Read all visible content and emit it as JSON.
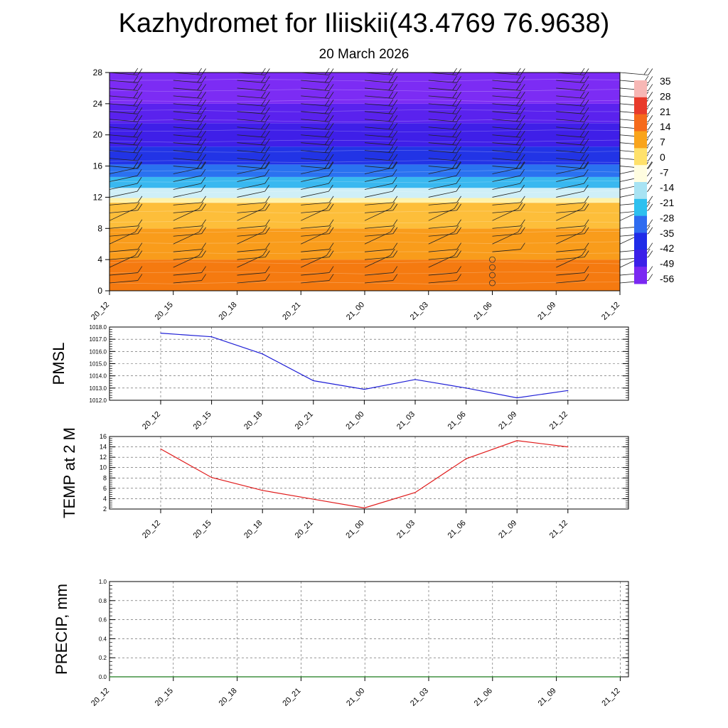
{
  "title": "Kazhydromet for Iliiskii(43.4769 76.9638)",
  "subtitle": "20 March 2026",
  "chart_data": [
    {
      "type": "heatmap",
      "name": "vertical-profile",
      "x_labels": [
        "20_12",
        "20_15",
        "20_18",
        "20_21",
        "21_00",
        "21_03",
        "21_06",
        "21_09",
        "21_12"
      ],
      "yticks": [
        0,
        4,
        8,
        12,
        16,
        20,
        24,
        28
      ],
      "ylim": [
        0,
        28
      ],
      "colorbar_labels": [
        "35",
        "28",
        "21",
        "14",
        "7",
        "0",
        "-7",
        "-14",
        "-21",
        "-28",
        "-35",
        "-42",
        "-49",
        "-56"
      ],
      "colorbar_colors": [
        "#f7b7b5",
        "#e83a2b",
        "#f56a1c",
        "#f9a41b",
        "#ffe16b",
        "#fffde0",
        "#a8e3f3",
        "#2ec0ef",
        "#2f6cf0",
        "#1f2ce8",
        "#3b1fe8",
        "#7a28f2"
      ],
      "bands": [
        {
          "from": 0,
          "to": 4,
          "color": "#f57a10"
        },
        {
          "from": 4,
          "to": 8,
          "color": "#f99c1b"
        },
        {
          "from": 8,
          "to": 11.3,
          "color": "#fdbe3a"
        },
        {
          "from": 11.3,
          "to": 11.9,
          "color": "#fff2a8"
        },
        {
          "from": 11.9,
          "to": 13.2,
          "color": "#cfeff7"
        },
        {
          "from": 13.2,
          "to": 14.6,
          "color": "#39b8f0"
        },
        {
          "from": 14.6,
          "to": 16.2,
          "color": "#2a72f0"
        },
        {
          "from": 16.2,
          "to": 18.5,
          "color": "#2234e6"
        },
        {
          "from": 18.5,
          "to": 21.5,
          "color": "#3f1fe8"
        },
        {
          "from": 21.5,
          "to": 24,
          "color": "#5a22ee"
        },
        {
          "from": 24,
          "to": 28,
          "color": "#7c2cf4"
        }
      ],
      "wind_columns": 9,
      "wind_levels": [
        1,
        2,
        3,
        4,
        5,
        6,
        7,
        8,
        9,
        10,
        11,
        12,
        13,
        14,
        15,
        16,
        17,
        18,
        19,
        20,
        21,
        22,
        23,
        24,
        25,
        26,
        27,
        28
      ],
      "calm_markers": [
        {
          "x_index": 6,
          "levels": [
            1,
            2,
            3,
            4
          ]
        }
      ]
    },
    {
      "type": "line",
      "name": "pmsl",
      "ylabel": "PMSL",
      "x_labels": [
        "20_12",
        "20_15",
        "20_18",
        "20_21",
        "21_00",
        "21_03",
        "21_06",
        "21_09",
        "21_12"
      ],
      "values": [
        1017.5,
        1017.2,
        1015.8,
        1013.6,
        1012.9,
        1013.7,
        1013.0,
        1012.2,
        1012.8
      ],
      "ylim": [
        1012,
        1018
      ],
      "yticks": [
        "1012.0",
        "1013.0",
        "1014.0",
        "1015.0",
        "1016.0",
        "1017.0",
        "1018.0"
      ],
      "color": "#1f1fd6"
    },
    {
      "type": "line",
      "name": "temp",
      "ylabel": "TEMP at 2 M",
      "x_labels": [
        "20_12",
        "20_15",
        "20_18",
        "20_21",
        "21_00",
        "21_03",
        "21_06",
        "21_09",
        "21_12"
      ],
      "values": [
        13.6,
        8.1,
        5.6,
        3.9,
        2.2,
        5.2,
        11.7,
        15.2,
        14.0
      ],
      "ylim": [
        2,
        16
      ],
      "yticks": [
        "2",
        "4",
        "6",
        "8",
        "10",
        "12",
        "14",
        "16"
      ],
      "color": "#e01b1b"
    },
    {
      "type": "line",
      "name": "precip",
      "ylabel": "PRECIP, mm",
      "x_labels": [
        "20_12",
        "20_15",
        "20_18",
        "20_21",
        "21_00",
        "21_03",
        "21_06",
        "21_09",
        "21_12"
      ],
      "values": [
        0,
        0,
        0,
        0,
        0,
        0,
        0,
        0,
        0
      ],
      "ylim": [
        0,
        1
      ],
      "yticks": [
        "0.0",
        "0.2",
        "0.4",
        "0.6",
        "0.8",
        "1.0"
      ],
      "color": "#1a7a1a"
    }
  ]
}
